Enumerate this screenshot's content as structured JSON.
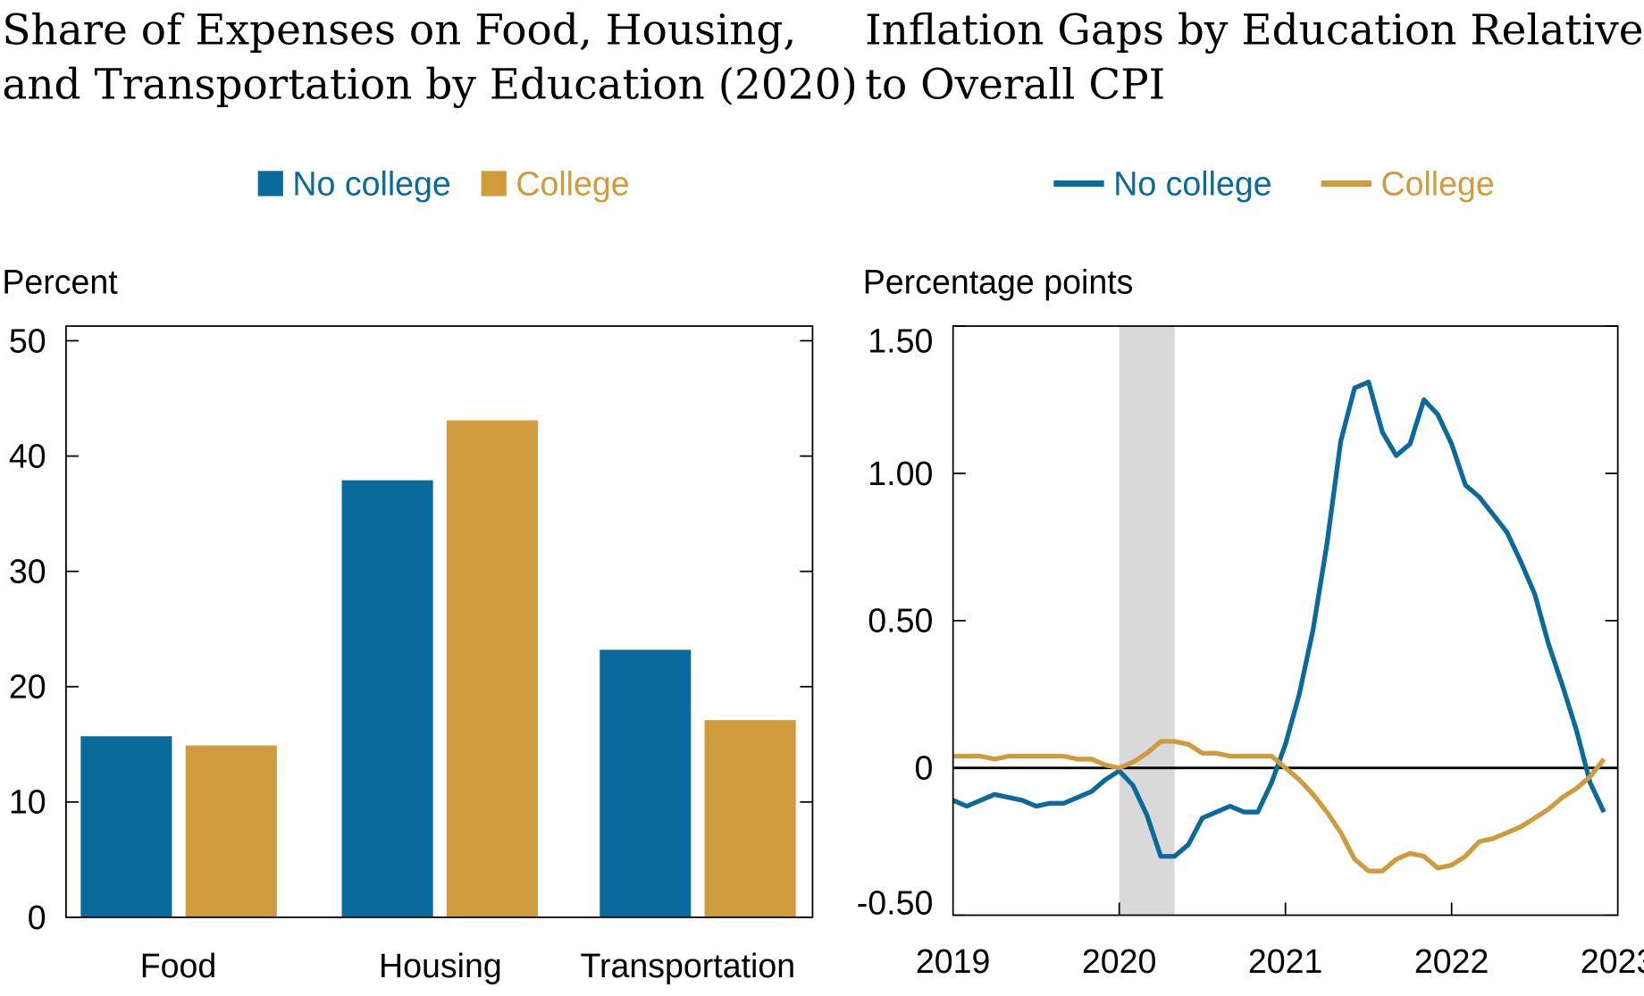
{
  "colors": {
    "no_college": "#0a6a9b",
    "college": "#cf9b3d",
    "recession": "#d9d9d9"
  },
  "chart_data": [
    {
      "type": "bar",
      "title_lines": [
        "Share of Expenses on Food, Housing,",
        "and Transportation by Education (2020)"
      ],
      "ylabel": "Percent",
      "ylim": [
        0,
        50
      ],
      "yticks": [
        "0",
        "10",
        "20",
        "30",
        "40",
        "50"
      ],
      "categories": [
        "Food",
        "Housing",
        "Transportation"
      ],
      "legend": "top-center",
      "series": [
        {
          "name": "No college",
          "values": [
            15.7,
            37.9,
            23.2
          ]
        },
        {
          "name": "College",
          "values": [
            14.9,
            43.1,
            17.1
          ]
        }
      ]
    },
    {
      "type": "line",
      "title_lines": [
        "Inflation Gaps by Education Relative",
        "to Overall CPI"
      ],
      "ylabel": "Percentage points",
      "ylim": [
        -0.5,
        1.5
      ],
      "yticks": [
        "-0.50",
        "0",
        "0.50",
        "1.00",
        "1.50"
      ],
      "xticks": [
        "2019",
        "2020",
        "2021",
        "2022",
        "2023"
      ],
      "xlim": [
        "2019-01",
        "2023-01"
      ],
      "legend": "top-center",
      "shaded_period": [
        "2020-02",
        "2020-05"
      ],
      "x": [
        "2019-01",
        "2019-02",
        "2019-03",
        "2019-04",
        "2019-05",
        "2019-06",
        "2019-07",
        "2019-08",
        "2019-09",
        "2019-10",
        "2019-11",
        "2019-12",
        "2020-01",
        "2020-02",
        "2020-03",
        "2020-04",
        "2020-05",
        "2020-06",
        "2020-07",
        "2020-08",
        "2020-09",
        "2020-10",
        "2020-11",
        "2020-12",
        "2021-01",
        "2021-02",
        "2021-03",
        "2021-04",
        "2021-05",
        "2021-06",
        "2021-07",
        "2021-08",
        "2021-09",
        "2021-10",
        "2021-11",
        "2021-12",
        "2022-01",
        "2022-02",
        "2022-03",
        "2022-04",
        "2022-05",
        "2022-06",
        "2022-07",
        "2022-08",
        "2022-09",
        "2022-10",
        "2022-11",
        "2022-12"
      ],
      "series": [
        {
          "name": "No college",
          "values": [
            -0.11,
            -0.13,
            -0.11,
            -0.09,
            -0.1,
            -0.11,
            -0.13,
            -0.12,
            -0.12,
            -0.1,
            -0.08,
            -0.04,
            -0.01,
            -0.06,
            -0.16,
            -0.3,
            -0.3,
            -0.26,
            -0.17,
            -0.15,
            -0.13,
            -0.15,
            -0.15,
            -0.05,
            0.08,
            0.25,
            0.47,
            0.76,
            1.11,
            1.29,
            1.31,
            1.14,
            1.06,
            1.1,
            1.25,
            1.2,
            1.1,
            0.96,
            0.92,
            0.86,
            0.8,
            0.7,
            0.59,
            0.42,
            0.28,
            0.13,
            -0.05,
            -0.15
          ]
        },
        {
          "name": "College",
          "values": [
            0.04,
            0.04,
            0.04,
            0.03,
            0.04,
            0.04,
            0.04,
            0.04,
            0.04,
            0.03,
            0.03,
            0.01,
            0.0,
            0.02,
            0.05,
            0.09,
            0.09,
            0.08,
            0.05,
            0.05,
            0.04,
            0.04,
            0.04,
            0.04,
            0.0,
            -0.04,
            -0.09,
            -0.15,
            -0.22,
            -0.31,
            -0.35,
            -0.35,
            -0.31,
            -0.29,
            -0.3,
            -0.34,
            -0.33,
            -0.3,
            -0.25,
            -0.24,
            -0.22,
            -0.2,
            -0.17,
            -0.14,
            -0.1,
            -0.07,
            -0.03,
            0.03
          ]
        }
      ]
    }
  ]
}
